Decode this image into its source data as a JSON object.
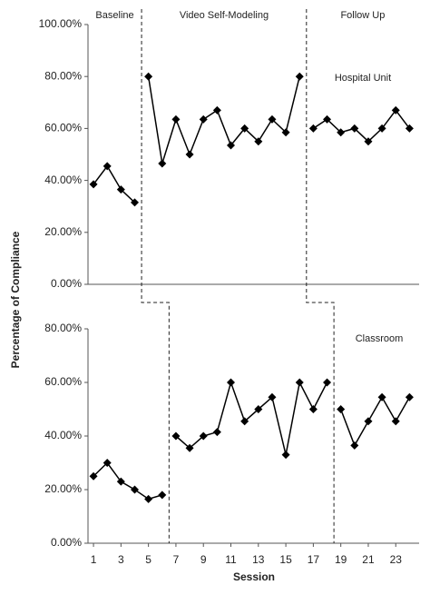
{
  "chart_data": [
    {
      "type": "line",
      "label": "Hospital Unit",
      "y_label": "Percentage of Compliance",
      "phase_labels": [
        "Baseline",
        "Video Self-Modeling",
        "Follow Up"
      ],
      "x": [
        1,
        2,
        3,
        4,
        5,
        6,
        7,
        8,
        9,
        10,
        11,
        12,
        13,
        14,
        15,
        16,
        17,
        18,
        19,
        20,
        21,
        22,
        23,
        24
      ],
      "values": [
        38.5,
        45.5,
        36.5,
        31.5,
        80,
        46.5,
        63.5,
        50,
        63.5,
        67,
        53.5,
        60,
        55,
        63.5,
        58.5,
        80,
        60,
        63.5,
        58.5,
        60,
        55,
        60,
        67,
        60
      ],
      "color": "#000000",
      "phase_changes": [
        4.5,
        16.5
      ],
      "xlim": [
        0.6,
        24.7
      ],
      "ylim": [
        0,
        100
      ],
      "yticks": [
        {
          "value": 0,
          "label": "0.00%"
        },
        {
          "value": 20,
          "label": "20.00%"
        },
        {
          "value": 40,
          "label": "40.00%"
        },
        {
          "value": 60,
          "label": "60.00%"
        },
        {
          "value": 80,
          "label": "80.00%"
        },
        {
          "value": 100,
          "label": "100.00%"
        }
      ]
    },
    {
      "type": "line",
      "label": "Classroom",
      "x_label": "Session",
      "x": [
        1,
        2,
        3,
        4,
        5,
        6,
        7,
        8,
        9,
        10,
        11,
        12,
        13,
        14,
        15,
        16,
        17,
        18,
        19,
        20,
        21,
        22,
        23,
        24
      ],
      "values": [
        25,
        30,
        23,
        20,
        16.5,
        18,
        40,
        35.5,
        40,
        41.5,
        60,
        45.5,
        50,
        54.5,
        33,
        60,
        50,
        60,
        50,
        36.5,
        45.5,
        54.5,
        45.5,
        54.5
      ],
      "color": "#000000",
      "phase_changes": [
        6.5,
        18.5
      ],
      "xlim": [
        0.6,
        24.7
      ],
      "xticks": [
        1,
        3,
        5,
        7,
        9,
        11,
        13,
        15,
        17,
        19,
        21,
        23
      ],
      "ylim": [
        0,
        80
      ],
      "yticks": [
        {
          "value": 0,
          "label": "0.00%"
        },
        {
          "value": 20,
          "label": "20.00%"
        },
        {
          "value": 40,
          "label": "40.00%"
        },
        {
          "value": 60,
          "label": "60.00%"
        },
        {
          "value": 80,
          "label": "80.00%"
        }
      ]
    }
  ]
}
